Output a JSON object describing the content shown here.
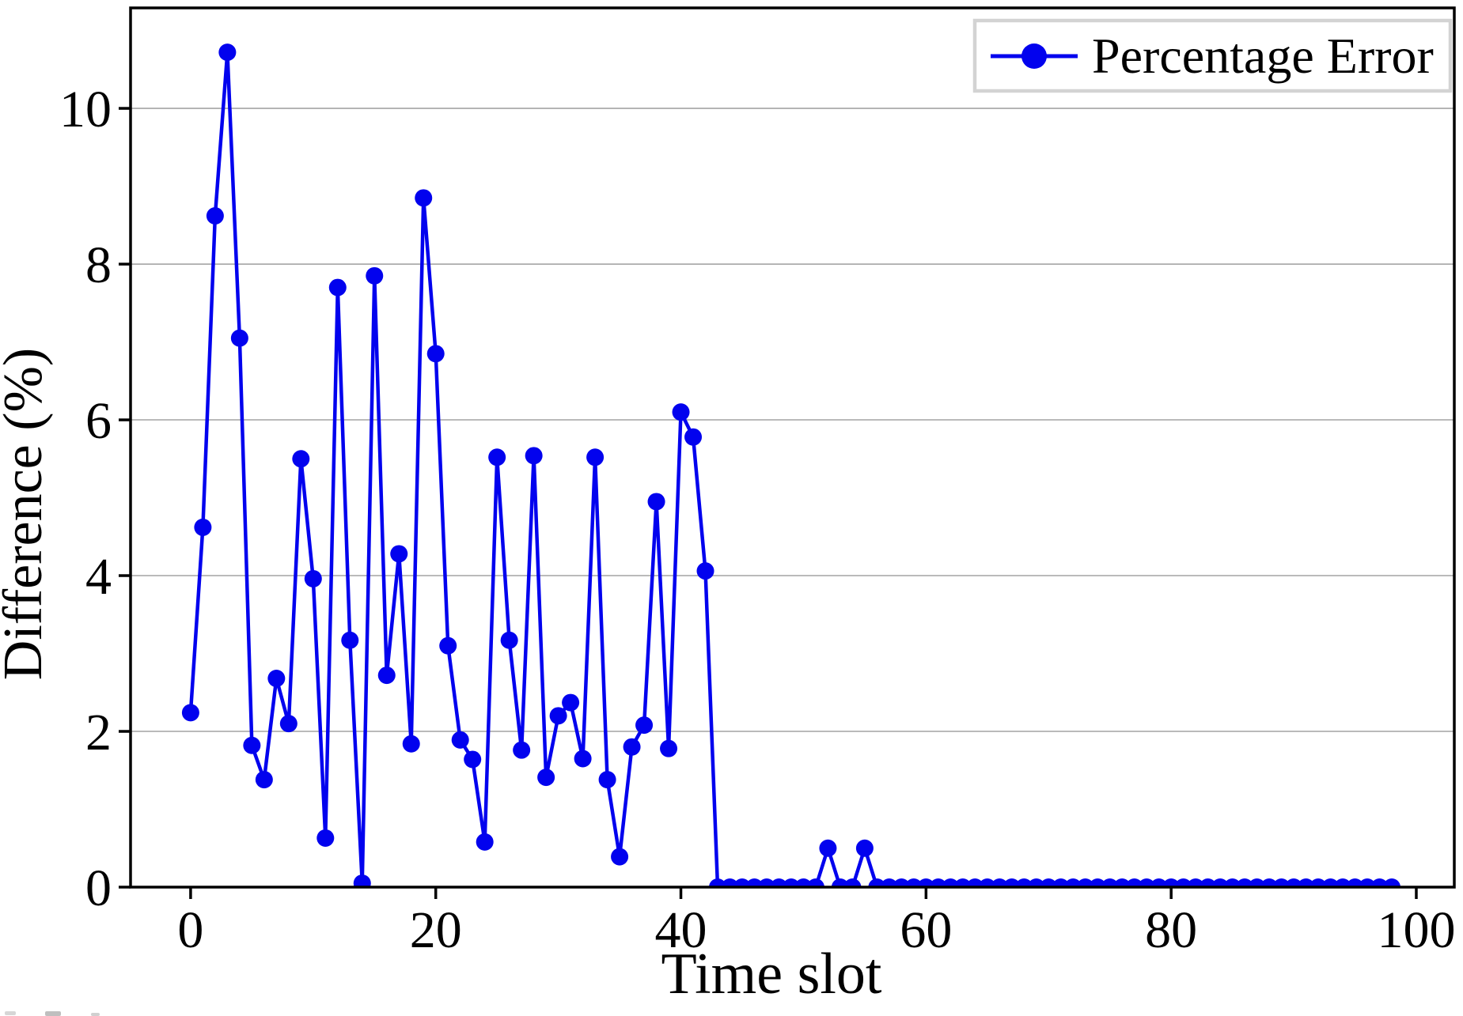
{
  "chart_data": {
    "type": "line",
    "title": "",
    "xlabel": "Time slot",
    "ylabel": "Difference (%)",
    "xticks": [
      0,
      20,
      40,
      60,
      80,
      100
    ],
    "yticks": [
      0,
      2,
      4,
      6,
      8,
      10
    ],
    "xlim": [
      -4.9,
      103.1
    ],
    "ylim": [
      0,
      11.29
    ],
    "grid": "horizontal-only",
    "legend_position": "upper right",
    "x_start": 0,
    "x_step": 1,
    "series": [
      {
        "name": "Percentage Error",
        "marker": "circle",
        "values": [
          2.24,
          4.62,
          8.62,
          10.72,
          7.05,
          1.82,
          1.38,
          2.68,
          2.1,
          5.5,
          3.96,
          0.63,
          7.7,
          3.17,
          0.05,
          7.85,
          2.72,
          4.28,
          1.84,
          8.85,
          6.85,
          3.1,
          1.89,
          1.64,
          0.58,
          5.52,
          3.17,
          1.76,
          5.54,
          1.41,
          2.2,
          2.37,
          1.65,
          5.52,
          1.38,
          0.39,
          1.8,
          2.08,
          4.95,
          1.78,
          6.1,
          5.78,
          4.06,
          0,
          0,
          0,
          0,
          0,
          0,
          0,
          0,
          0,
          0.5,
          0,
          0,
          0.5,
          0,
          0,
          0,
          0,
          0,
          0,
          0,
          0,
          0,
          0,
          0,
          0,
          0,
          0,
          0,
          0,
          0,
          0,
          0,
          0,
          0,
          0,
          0,
          0,
          0,
          0,
          0,
          0,
          0,
          0,
          0,
          0,
          0,
          0,
          0,
          0,
          0,
          0,
          0,
          0,
          0,
          0,
          0
        ]
      }
    ],
    "colors": {
      "series": "#0202ee",
      "grid": "#b0b0b0",
      "spine": "#000000",
      "legend_border": "#d3d3d3",
      "text": "#000000",
      "background": "#ffffff"
    }
  }
}
